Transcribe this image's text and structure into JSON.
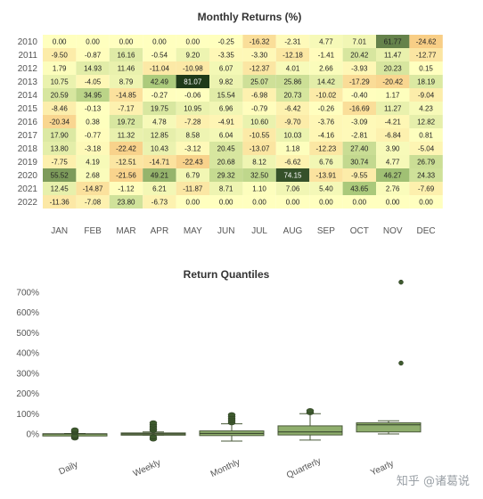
{
  "chart_data": [
    {
      "type": "heatmap",
      "title": "Monthly Returns (%)",
      "years": [
        "2010",
        "2011",
        "2012",
        "2013",
        "2014",
        "2015",
        "2016",
        "2017",
        "2018",
        "2019",
        "2020",
        "2021",
        "2022"
      ],
      "months": [
        "JAN",
        "FEB",
        "MAR",
        "APR",
        "MAY",
        "JUN",
        "JUL",
        "AUG",
        "SEP",
        "OCT",
        "NOV",
        "DEC"
      ],
      "values": [
        [
          "0.00",
          "0.00",
          "0.00",
          "0.00",
          "0.00",
          "-0.25",
          "-16.32",
          "-2.31",
          "4.77",
          "7.01",
          "61.77",
          "-24.62"
        ],
        [
          "-9.50",
          "-0.87",
          "16.16",
          "-0.54",
          "9.20",
          "-3.35",
          "-3.30",
          "-12.18",
          "-1.41",
          "20.42",
          "11.47",
          "-12.77"
        ],
        [
          "1.79",
          "14.93",
          "11.46",
          "-11.04",
          "-10.98",
          "6.07",
          "-12.37",
          "4.01",
          "2.66",
          "-3.93",
          "20.23",
          "0.15"
        ],
        [
          "10.75",
          "-4.05",
          "8.79",
          "42.49",
          "81.07",
          "9.82",
          "25.07",
          "25.86",
          "14.42",
          "-17.29",
          "-20.42",
          "18.19"
        ],
        [
          "20.59",
          "34.95",
          "-14.85",
          "-0.27",
          "-0.06",
          "15.54",
          "-6.98",
          "20.73",
          "-10.02",
          "-0.40",
          "1.17",
          "-9.04"
        ],
        [
          "-8.46",
          "-0.13",
          "-7.17",
          "19.75",
          "10.95",
          "6.96",
          "-0.79",
          "-6.42",
          "-0.26",
          "-16.69",
          "11.27",
          "4.23"
        ],
        [
          "-20.34",
          "0.38",
          "19.72",
          "4.78",
          "-7.28",
          "-4.91",
          "10.60",
          "-9.70",
          "-3.76",
          "-3.09",
          "-4.21",
          "12.82"
        ],
        [
          "17.90",
          "-0.77",
          "11.32",
          "12.85",
          "8.58",
          "6.04",
          "-10.55",
          "10.03",
          "-4.16",
          "-2.81",
          "-6.84",
          "0.81"
        ],
        [
          "13.80",
          "-3.18",
          "-22.42",
          "10.43",
          "-3.12",
          "20.45",
          "-13.07",
          "1.18",
          "-12.23",
          "27.40",
          "3.90",
          "-5.04"
        ],
        [
          "-7.75",
          "4.19",
          "-12.51",
          "-14.71",
          "-22.43",
          "20.68",
          "8.12",
          "-6.62",
          "6.76",
          "30.74",
          "4.77",
          "26.79"
        ],
        [
          "55.52",
          "2.68",
          "-21.56",
          "49.21",
          "6.79",
          "29.32",
          "32.50",
          "74.15",
          "-13.91",
          "-9.55",
          "46.27",
          "24.33"
        ],
        [
          "12.45",
          "-14.87",
          "-1.12",
          "6.21",
          "-11.87",
          "8.71",
          "1.10",
          "7.06",
          "5.40",
          "43.65",
          "2.76",
          "-7.69"
        ],
        [
          "-11.36",
          "-7.08",
          "23.80",
          "-6.73",
          "0.00",
          "0.00",
          "0.00",
          "0.00",
          "0.00",
          "0.00",
          "0.00",
          "0.00"
        ]
      ],
      "color_range": [
        -30,
        80
      ],
      "colors": {
        "low": "#f6c37a",
        "mid": "#ffffbf",
        "high": "#1f3a1a"
      }
    },
    {
      "type": "box",
      "title": "Return Quantiles",
      "categories": [
        "Daily",
        "Weekly",
        "Monthly",
        "Quarterly",
        "Yearly"
      ],
      "ylim": [
        -80,
        770
      ],
      "yticks": [
        "0%",
        "100%",
        "200%",
        "300%",
        "400%",
        "500%",
        "600%",
        "700%"
      ],
      "boxes": [
        {
          "min": -2,
          "q1": -1,
          "median": 0,
          "q3": 1,
          "max": 2,
          "outliers": [
            -20,
            -15,
            -10,
            10,
            15,
            20
          ]
        },
        {
          "min": -6,
          "q1": -4,
          "median": 0,
          "q3": 5,
          "max": 10,
          "outliers": [
            -25,
            -15,
            18,
            25,
            35,
            45,
            55
          ]
        },
        {
          "min": -35,
          "q1": -8,
          "median": 3,
          "q3": 15,
          "max": 50,
          "outliers": [
            55,
            65,
            75,
            85,
            95
          ]
        },
        {
          "min": -30,
          "q1": -5,
          "median": 10,
          "q3": 40,
          "max": 100,
          "outliers": [
            105,
            115
          ]
        },
        {
          "min": 0,
          "q1": 10,
          "median": 45,
          "q3": 55,
          "max": 65,
          "outliers": [
            350,
            750
          ]
        }
      ],
      "color": "#8fae6d"
    }
  ],
  "watermark": "知乎 @诸葛说"
}
